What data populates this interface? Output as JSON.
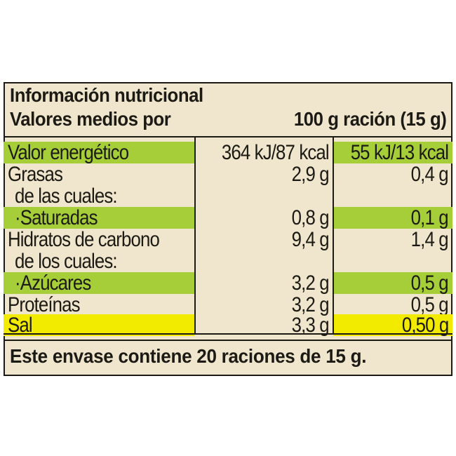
{
  "header": {
    "title": "Información nutricional",
    "subtitle_left": "Valores medios por",
    "subtitle_right": "100 g ración (15 g)"
  },
  "table": {
    "rows": [
      {
        "name": "Valor energético",
        "per100": "364 kJ/87 kcal",
        "portion": "55 kJ/13 kcal",
        "indent": false
      },
      {
        "name": "Grasas",
        "per100": "2,9 g",
        "portion": "0,4 g",
        "indent": false
      },
      {
        "name": "de las cuales:",
        "per100": "",
        "portion": "",
        "indent": true
      },
      {
        "name": "·Saturadas",
        "per100": "0,8 g",
        "portion": "0,1 g",
        "indent": true
      },
      {
        "name": "Hidratos de carbono",
        "per100": "9,4 g",
        "portion": "1,4 g",
        "indent": false
      },
      {
        "name": "de los cuales:",
        "per100": "",
        "portion": "",
        "indent": true
      },
      {
        "name": "·Azúcares",
        "per100": "3,2 g",
        "portion": "0,5 g",
        "indent": true
      },
      {
        "name": "Proteínas",
        "per100": "3,2 g",
        "portion": "0,5 g",
        "indent": false
      },
      {
        "name": "Sal",
        "per100": "3,3 g",
        "portion": "0,50 g",
        "indent": false
      }
    ]
  },
  "footer": {
    "text": "Este envase contiene 20 raciones de 15 g."
  },
  "colors": {
    "background": "#f0e6cd",
    "green": "#a6ce39",
    "yellow": "#f2eb00",
    "text": "#1c1a14"
  }
}
